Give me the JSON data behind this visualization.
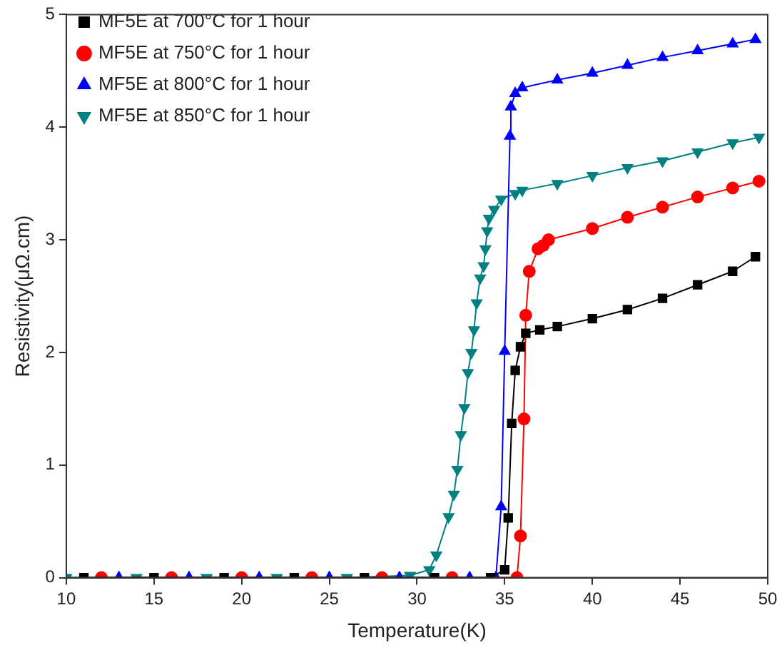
{
  "chart_data": {
    "type": "line",
    "xlabel": "Temperature(K)",
    "ylabel": "Resistivity(μΩ.cm)",
    "xlim": [
      10,
      50
    ],
    "ylim": [
      0,
      5
    ],
    "xticks": [
      10,
      15,
      20,
      25,
      30,
      35,
      40,
      45,
      50
    ],
    "yticks": [
      0,
      1,
      2,
      3,
      4,
      5
    ],
    "grid": false,
    "legend": "top left",
    "line_style": "solid",
    "series": [
      {
        "name": "MF5E at 700°C for 1 hour",
        "color": "#000000",
        "marker": "square",
        "x": [
          11,
          15,
          19,
          23,
          27,
          31,
          34.2,
          35.0,
          35.2,
          35.4,
          35.6,
          35.9,
          36.2,
          37,
          38,
          40,
          42,
          44,
          46,
          48,
          49.3
        ],
        "values": [
          0,
          0,
          0,
          0,
          0,
          0,
          0,
          0.07,
          0.53,
          1.37,
          1.84,
          2.05,
          2.17,
          2.2,
          2.23,
          2.3,
          2.38,
          2.48,
          2.6,
          2.72,
          2.85
        ]
      },
      {
        "name": "MF5E at 750°C for 1 hour",
        "color": "#ff0000",
        "marker": "circle",
        "x": [
          12,
          16,
          20,
          24,
          28,
          32,
          35.7,
          35.9,
          36.1,
          36.2,
          36.4,
          36.9,
          37.2,
          37.5,
          40,
          42,
          44,
          46,
          48,
          49.5
        ],
        "values": [
          0,
          0,
          0,
          0,
          0,
          0,
          0,
          0.37,
          1.41,
          2.33,
          2.72,
          2.92,
          2.95,
          3.0,
          3.1,
          3.2,
          3.29,
          3.38,
          3.46,
          3.52
        ]
      },
      {
        "name": "MF5E at 800°C for 1 hour",
        "color": "#0000ff",
        "marker": "triangle",
        "x": [
          13,
          17,
          21,
          25,
          29,
          33,
          34.5,
          34.8,
          35.0,
          35.3,
          35.35,
          35.6,
          36,
          38,
          40,
          42,
          44,
          46,
          48,
          49.3
        ],
        "values": [
          0,
          0,
          0,
          0,
          0,
          0,
          0,
          0.63,
          2.01,
          3.92,
          4.18,
          4.3,
          4.35,
          4.42,
          4.48,
          4.55,
          4.62,
          4.68,
          4.74,
          4.78
        ]
      },
      {
        "name": "MF5E at 850°C for 1 hour",
        "color": "#008080",
        "marker": "triangle-down",
        "x": [
          10,
          14,
          18,
          22,
          26,
          29.6,
          30.7,
          31.1,
          31.8,
          32.1,
          32.3,
          32.5,
          32.7,
          32.9,
          33.1,
          33.25,
          33.4,
          33.6,
          33.8,
          33.9,
          34.0,
          34.1,
          34.4,
          34.8,
          35.6,
          36,
          38,
          40,
          42,
          44,
          46,
          48,
          49.5
        ],
        "values": [
          0,
          0,
          0,
          0,
          0,
          0.02,
          0.07,
          0.2,
          0.54,
          0.74,
          0.96,
          1.27,
          1.51,
          1.82,
          2.0,
          2.2,
          2.44,
          2.66,
          2.77,
          2.92,
          3.08,
          3.19,
          3.27,
          3.36,
          3.41,
          3.44,
          3.5,
          3.57,
          3.64,
          3.7,
          3.78,
          3.86,
          3.91
        ]
      }
    ]
  }
}
